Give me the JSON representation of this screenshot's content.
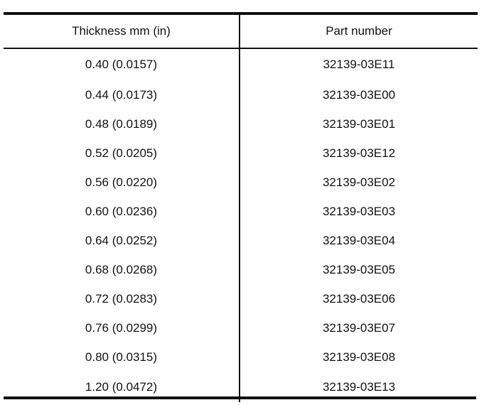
{
  "table": {
    "headers": {
      "thickness": "Thickness mm (in)",
      "part_number": "Part number"
    },
    "rows": [
      {
        "thickness": "0.40 (0.0157)",
        "part_number": "32139-03E11"
      },
      {
        "thickness": "0.44 (0.0173)",
        "part_number": "32139-03E00"
      },
      {
        "thickness": "0.48 (0.0189)",
        "part_number": "32139-03E01"
      },
      {
        "thickness": "0.52 (0.0205)",
        "part_number": "32139-03E12"
      },
      {
        "thickness": "0.56 (0.0220)",
        "part_number": "32139-03E02"
      },
      {
        "thickness": "0.60 (0.0236)",
        "part_number": "32139-03E03"
      },
      {
        "thickness": "0.64 (0.0252)",
        "part_number": "32139-03E04"
      },
      {
        "thickness": "0.68 (0.0268)",
        "part_number": "32139-03E05"
      },
      {
        "thickness": "0.72 (0.0283)",
        "part_number": "32139-03E06"
      },
      {
        "thickness": "0.76 (0.0299)",
        "part_number": "32139-03E07"
      },
      {
        "thickness": "0.80 (0.0315)",
        "part_number": "32139-03E08"
      },
      {
        "thickness": "1.20 (0.0472)",
        "part_number": "32139-03E13"
      }
    ]
  }
}
